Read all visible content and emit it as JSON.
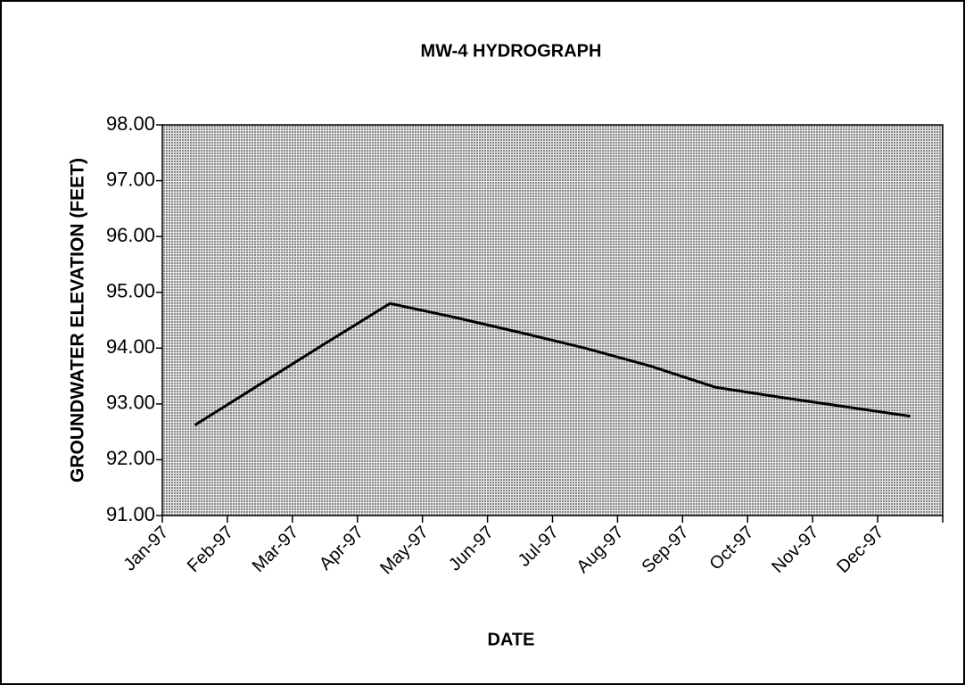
{
  "chart_data": {
    "type": "line",
    "title": "MW-4 HYDROGRAPH",
    "x_label": "DATE",
    "y_label": "GROUNDWATER ELEVATION (FEET)",
    "categories": [
      "Jan-97",
      "Feb-97",
      "Mar-97",
      "Apr-97",
      "May-97",
      "Jun-97",
      "Jul-97",
      "Aug-97",
      "Sep-97",
      "Oct-97",
      "Nov-97",
      "Dec-97"
    ],
    "series": [
      {
        "name": "MW-4",
        "color": "#000000",
        "values": [
          92.62,
          93.35,
          94.08,
          94.8,
          94.55,
          94.28,
          94.0,
          93.68,
          93.3,
          93.12,
          92.95,
          92.78
        ]
      }
    ],
    "ylim": [
      91,
      98
    ],
    "yticks": [
      {
        "value": 91,
        "label": "91.00"
      },
      {
        "value": 92,
        "label": "92.00"
      },
      {
        "value": 93,
        "label": "93.00"
      },
      {
        "value": 94,
        "label": "94.00"
      },
      {
        "value": 95,
        "label": "95.00"
      },
      {
        "value": 96,
        "label": "96.00"
      },
      {
        "value": 97,
        "label": "97.00"
      },
      {
        "value": 98,
        "label": "98.00"
      }
    ],
    "plot_background": "#c4c4c4"
  }
}
